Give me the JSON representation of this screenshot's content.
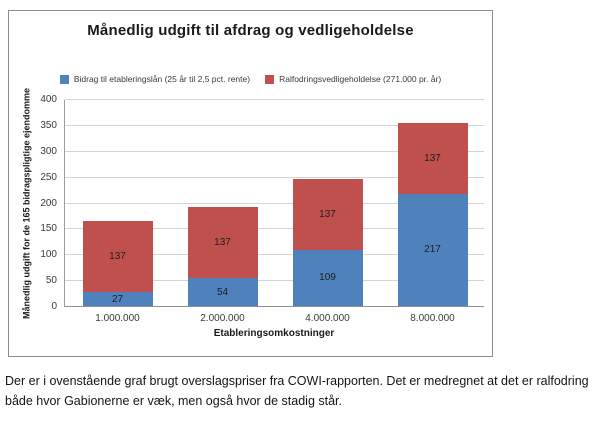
{
  "page": {
    "caption": "Der er i ovenstående graf brugt overslagspriser fra COWI-rapporten. Det er medregnet at det er ralfodring både hvor Gabionerne er væk, men også hvor de stadig står."
  },
  "chart_data": {
    "type": "bar",
    "stacked": true,
    "title": "Månedlig udgift til afdrag og vedligeholdelse",
    "xlabel": "Etableringsomkostninger",
    "ylabel": "Månedlig udgift for de 165 bidragspligtige ejendomme",
    "categories": [
      "1.000.000",
      "2.000.000",
      "4.000.000",
      "8.000.000"
    ],
    "series": [
      {
        "name": "Bidrag til etableringslån (25 år til 2,5 pct. rente)",
        "color": "#4F81BD",
        "values": [
          27,
          54,
          109,
          217
        ]
      },
      {
        "name": "Ralfodringsvedligeholdelse (271.000 pr. år)",
        "color": "#C0504D",
        "values": [
          137,
          137,
          137,
          137
        ]
      }
    ],
    "ylim": [
      0,
      400
    ],
    "ytick_step": 50,
    "grid": true,
    "legend_position": "top",
    "colors": {
      "gridline": "#D4D4D4",
      "axis": "#8F8F8F",
      "frame_border": "#8C8C8C"
    }
  }
}
